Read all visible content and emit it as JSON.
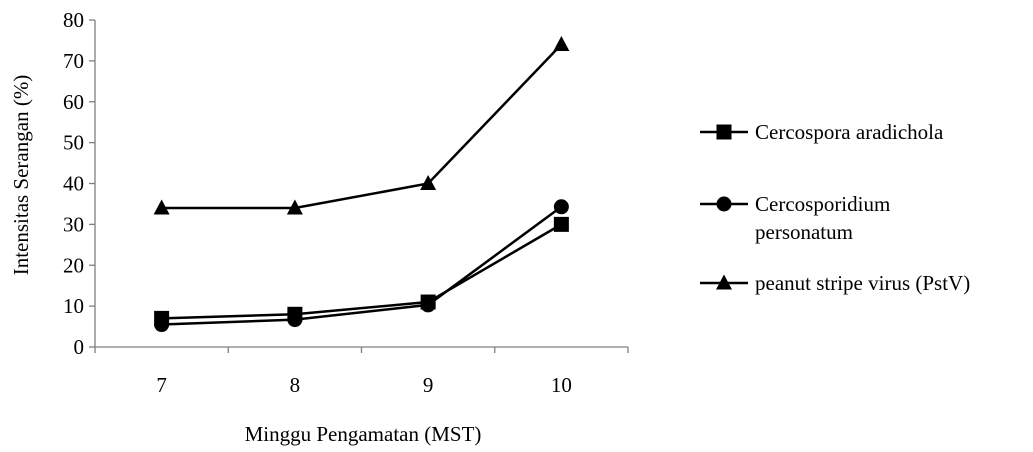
{
  "chart_data": {
    "type": "line",
    "title": "",
    "xlabel": "Minggu Pengamatan (MST)",
    "ylabel": "Intensitas Serangan (%)",
    "categories": [
      "7",
      "8",
      "9",
      "10"
    ],
    "ylim": [
      0,
      80
    ],
    "yticks": [
      "0",
      "10",
      "20",
      "30",
      "40",
      "50",
      "60",
      "70",
      "80"
    ],
    "grid": false,
    "legend_position": "right",
    "series": [
      {
        "name": "Cercospora aradichola",
        "marker": "square",
        "color": "#000000",
        "values": [
          7,
          8,
          11,
          30
        ]
      },
      {
        "name": "Cercosporidium personatum",
        "marker": "circle",
        "color": "#000000",
        "values": [
          5.5,
          6.7,
          10.3,
          34.3
        ]
      },
      {
        "name": "peanut stripe virus (PstV)",
        "marker": "triangle",
        "color": "#000000",
        "values": [
          34,
          34,
          40,
          74
        ]
      }
    ]
  }
}
